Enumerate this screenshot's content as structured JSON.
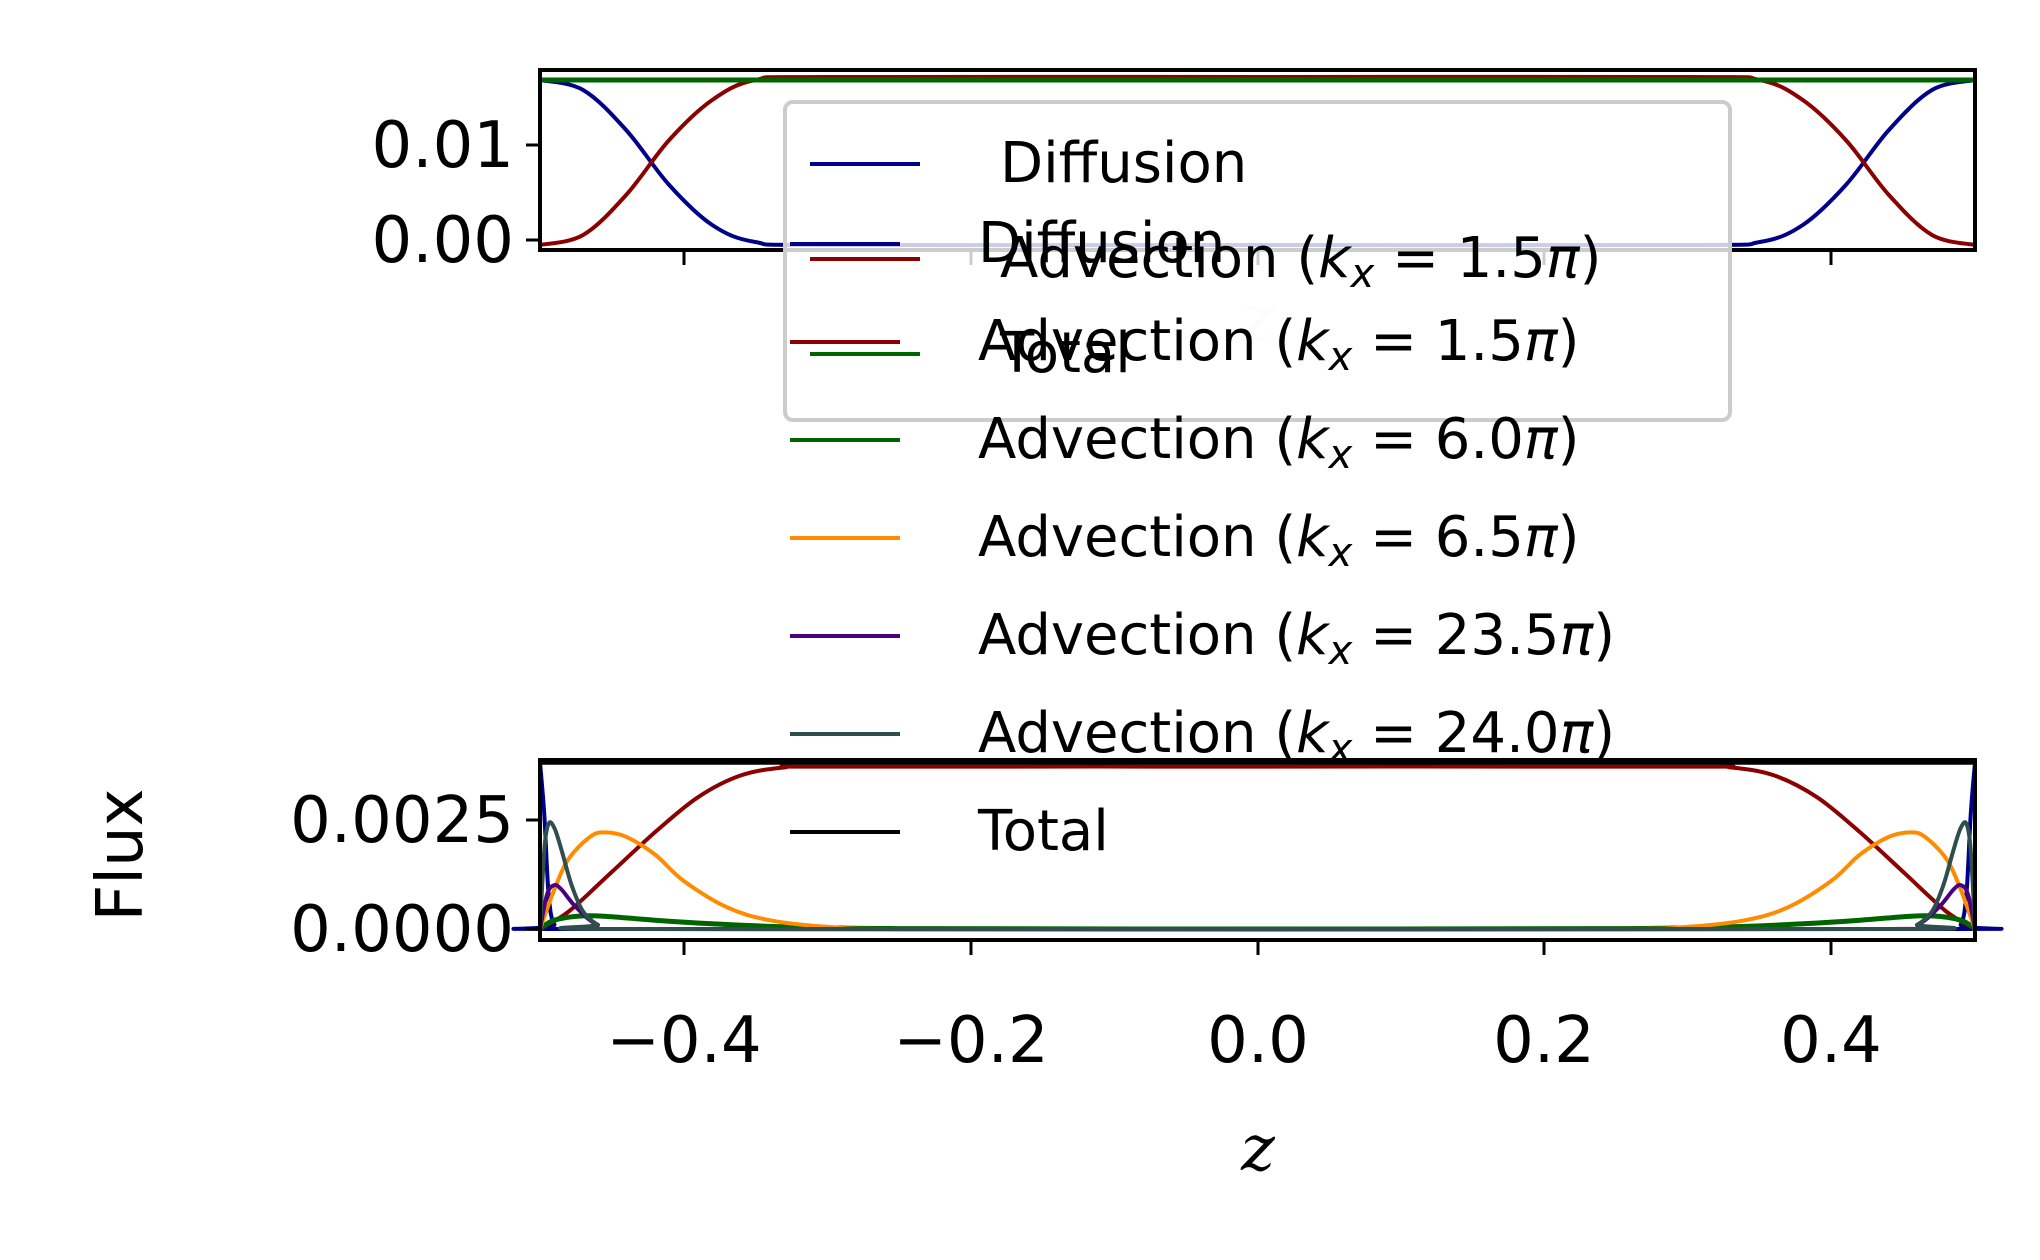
{
  "chart_data": [
    {
      "id": "top",
      "type": "line",
      "title": "",
      "xlabel": "z",
      "ylabel": "",
      "xlim": [
        -0.5,
        0.5
      ],
      "ylim": [
        -0.0005,
        0.0175
      ],
      "xticks": [
        -0.4,
        -0.2,
        0.0,
        0.2,
        0.4
      ],
      "yticks": [
        0.0,
        0.01
      ],
      "ytick_labels": [
        "0.00",
        "0.01"
      ],
      "legend": "overlapping upper-center",
      "series": [
        {
          "name": "Diffusion",
          "color": "#00008b",
          "x": [
            -0.5,
            -0.47,
            -0.44,
            -0.41,
            -0.38,
            -0.35,
            -0.3,
            0.0,
            0.3,
            0.35,
            0.38,
            0.41,
            0.44,
            0.47,
            0.5
          ],
          "values": [
            0.0165,
            0.0155,
            0.0115,
            0.006,
            0.002,
            0.0003,
            0.0,
            0.0,
            0.0,
            0.0003,
            0.002,
            0.006,
            0.0115,
            0.0155,
            0.0165
          ]
        },
        {
          "name": "Advection (k_x = 1.5π)",
          "color": "#8b0000",
          "x": [
            -0.5,
            -0.47,
            -0.44,
            -0.41,
            -0.38,
            -0.35,
            -0.3,
            0.0,
            0.3,
            0.35,
            0.38,
            0.41,
            0.44,
            0.47,
            0.5
          ],
          "values": [
            0.0,
            0.001,
            0.005,
            0.0105,
            0.0145,
            0.0165,
            0.0168,
            0.0168,
            0.0168,
            0.0165,
            0.0145,
            0.0105,
            0.005,
            0.001,
            0.0
          ]
        },
        {
          "name": "Total",
          "color": "#006400",
          "x": [
            -0.5,
            0.5
          ],
          "values": [
            0.0165,
            0.0165
          ]
        }
      ],
      "legend_entries": [
        {
          "label": "Diffusion",
          "color": "#00008b"
        },
        {
          "label": "Advection (k_x = 1.5π)",
          "color": "#8b0000"
        },
        {
          "label": "Total",
          "color": "#006400"
        }
      ]
    },
    {
      "id": "bottom",
      "type": "line",
      "title": "",
      "xlabel": "z",
      "ylabel": "Flux",
      "xlim": [
        -0.5,
        0.5
      ],
      "ylim": [
        -0.00025,
        0.00385
      ],
      "xticks": [
        -0.4,
        -0.2,
        0.0,
        0.2,
        0.4
      ],
      "xtick_labels": [
        "−0.4",
        "−0.2",
        "0.0",
        "0.2",
        "0.4"
      ],
      "yticks": [
        0.0,
        0.0025
      ],
      "ytick_labels": [
        "0.0000",
        "0.0025"
      ],
      "series": [
        {
          "name": "Diffusion",
          "color": "#00008b",
          "x": [
            -0.5,
            -0.497,
            -0.494,
            -0.49,
            -0.48,
            0.0,
            0.48,
            0.49,
            0.494,
            0.497,
            0.5
          ],
          "values": [
            0.0038,
            0.0026,
            0.0008,
            0.0001,
            0.0,
            0.0,
            0.0,
            0.0001,
            0.0008,
            0.0026,
            0.0038
          ]
        },
        {
          "name": "Advection (k_x = 1.5π)",
          "color": "#8b0000",
          "x": [
            -0.5,
            -0.48,
            -0.45,
            -0.42,
            -0.39,
            -0.36,
            -0.33,
            -0.3,
            0.0,
            0.3,
            0.33,
            0.36,
            0.39,
            0.42,
            0.45,
            0.48,
            0.5
          ],
          "values": [
            0.0,
            0.0004,
            0.0013,
            0.0022,
            0.003,
            0.0035,
            0.00368,
            0.0037,
            0.0037,
            0.0037,
            0.00368,
            0.0035,
            0.003,
            0.0022,
            0.0013,
            0.0004,
            0.0
          ]
        },
        {
          "name": "Advection (k_x = 6.0π)",
          "color": "#006400",
          "x": [
            -0.5,
            -0.49,
            -0.47,
            -0.45,
            -0.42,
            -0.38,
            -0.33,
            -0.25,
            0.0,
            0.25,
            0.33,
            0.38,
            0.42,
            0.45,
            0.47,
            0.49,
            0.5
          ],
          "values": [
            0.0,
            0.0002,
            0.0003,
            0.00028,
            0.0002,
            0.00012,
            5e-05,
            1e-05,
            0.0,
            1e-05,
            5e-05,
            0.00012,
            0.0002,
            0.00028,
            0.0003,
            0.0002,
            0.0
          ]
        },
        {
          "name": "Advection (k_x = 6.5π)",
          "color": "#ff8c00",
          "x": [
            -0.5,
            -0.49,
            -0.48,
            -0.465,
            -0.455,
            -0.44,
            -0.42,
            -0.4,
            -0.37,
            -0.34,
            -0.3,
            -0.25,
            0.0,
            0.25,
            0.3,
            0.34,
            0.37,
            0.4,
            0.42,
            0.44,
            0.455,
            0.465,
            0.48,
            0.49,
            0.5
          ],
          "values": [
            0.0,
            0.0009,
            0.0016,
            0.0021,
            0.0022,
            0.0021,
            0.0017,
            0.0011,
            0.0005,
            0.0002,
            5e-05,
            0.0,
            0.0,
            0.0,
            5e-05,
            0.0002,
            0.0005,
            0.0011,
            0.0017,
            0.0021,
            0.0022,
            0.0021,
            0.0016,
            0.0009,
            0.0
          ]
        },
        {
          "name": "Advection (k_x = 23.5π)",
          "color": "#4b0082",
          "x": [
            -0.5,
            -0.495,
            -0.49,
            -0.485,
            -0.475,
            -0.46,
            -0.44,
            0.0,
            0.44,
            0.46,
            0.475,
            0.485,
            0.49,
            0.495,
            0.5
          ],
          "values": [
            0.0,
            0.0008,
            0.001,
            0.0009,
            0.0005,
            0.0001,
            0.0,
            0.0,
            0.0,
            0.0001,
            0.0005,
            0.0009,
            0.001,
            0.0008,
            0.0
          ]
        },
        {
          "name": "Advection (k_x = 24.0π)",
          "color": "#2f4f4f",
          "x": [
            -0.5,
            -0.497,
            -0.494,
            -0.49,
            -0.485,
            -0.478,
            -0.47,
            -0.46,
            -0.45,
            0.0,
            0.45,
            0.46,
            0.47,
            0.478,
            0.485,
            0.49,
            0.494,
            0.497,
            0.5
          ],
          "values": [
            0.0,
            0.0018,
            0.0024,
            0.0023,
            0.0018,
            0.001,
            0.0004,
            0.0001,
            0.0,
            0.0,
            0.0,
            0.0001,
            0.0004,
            0.001,
            0.0018,
            0.0023,
            0.0024,
            0.0018,
            0.0
          ]
        },
        {
          "name": "Total",
          "color": "#000000",
          "x": [
            -0.5,
            0.5
          ],
          "values": [
            0.0038,
            0.0038
          ]
        }
      ],
      "legend_entries": [
        {
          "label": "Diffusion",
          "color": "#00008b"
        },
        {
          "label": "Advection (k_x = 1.5π)",
          "color": "#8b0000"
        },
        {
          "label": "Advection (k_x = 6.0π)",
          "color": "#006400"
        },
        {
          "label": "Advection (k_x = 6.5π)",
          "color": "#ff8c00"
        },
        {
          "label": "Advection (k_x = 23.5π)",
          "color": "#4b0082"
        },
        {
          "label": "Advection (k_x = 24.0π)",
          "color": "#2f4f4f"
        },
        {
          "label": "Total",
          "color": "#000000"
        }
      ]
    }
  ],
  "labels": {
    "top_xlabel": "z",
    "bottom_xlabel": "z",
    "bottom_ylabel": "Flux",
    "top_ytick_0": "0.00",
    "top_ytick_1": "0.01",
    "bottom_ytick_0": "0.0000",
    "bottom_ytick_1": "0.0025",
    "bottom_xtick_0": "−0.4",
    "bottom_xtick_1": "−0.2",
    "bottom_xtick_2": "0.0",
    "bottom_xtick_3": "0.2",
    "bottom_xtick_4": "0.4"
  }
}
